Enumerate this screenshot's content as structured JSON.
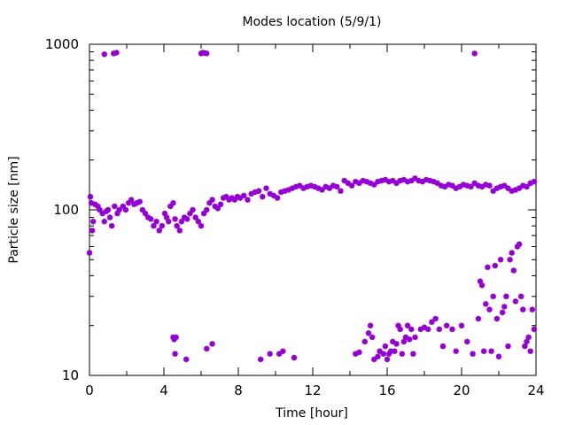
{
  "chart_data": {
    "type": "scatter",
    "title": "Modes location (5/9/1)",
    "xlabel": "Time [hour]",
    "ylabel": "Particle size [nm]",
    "xlim": [
      0,
      24
    ],
    "ylim": [
      10,
      1000
    ],
    "yscale": "log",
    "xticks": [
      "0",
      "4",
      "8",
      "12",
      "16",
      "20",
      "24"
    ],
    "yticks": [
      "10",
      "100",
      "1000"
    ],
    "grid": false,
    "marker_color": "#9400d3",
    "series": [
      {
        "x": [
          0.0,
          0.05,
          0.1,
          0.15,
          0.2,
          0.3,
          0.45,
          0.55,
          0.7,
          0.8,
          0.9,
          1.0,
          1.1,
          1.2,
          1.35,
          1.5,
          1.6,
          1.8,
          1.95,
          2.1,
          2.25,
          2.4,
          2.55,
          2.7,
          2.85,
          3.0,
          3.15,
          3.3,
          3.45,
          3.6,
          3.75,
          3.9,
          4.05,
          4.15,
          4.25,
          4.35,
          4.5,
          4.6,
          4.7,
          4.85,
          4.95,
          5.1,
          5.25,
          5.4,
          5.55,
          5.7,
          5.85,
          6.0,
          6.15,
          6.3,
          6.45,
          6.6,
          6.75,
          6.9,
          7.05,
          7.2,
          7.35,
          7.5,
          7.65,
          7.8,
          7.95,
          8.1,
          8.3,
          8.5,
          8.7,
          8.9,
          9.1,
          9.3,
          9.5,
          9.7,
          9.9,
          10.1,
          10.3,
          10.5,
          10.7,
          10.9,
          11.1,
          11.3,
          11.5,
          11.7,
          11.9,
          12.1,
          12.3,
          12.5,
          12.7,
          12.9,
          13.1,
          13.3,
          13.5,
          13.7,
          13.9,
          14.1,
          14.3,
          14.5,
          14.7,
          14.9,
          15.1,
          15.3,
          15.5,
          15.7,
          15.9,
          16.1,
          16.3,
          16.5,
          16.7,
          16.9,
          17.1,
          17.3,
          17.5,
          17.7,
          17.9,
          18.1,
          18.3,
          18.5,
          18.7,
          18.9,
          19.1,
          19.3,
          19.5,
          19.7,
          19.9,
          20.1,
          20.3,
          20.5,
          20.7,
          20.9,
          21.1,
          21.3,
          21.5,
          21.7,
          21.9,
          22.1,
          22.3,
          22.5,
          22.7,
          22.9,
          23.1,
          23.3,
          23.5,
          23.7,
          23.9
        ],
        "y": [
          55,
          120,
          110,
          75,
          85,
          108,
          105,
          100,
          95,
          85,
          98,
          100,
          90,
          80,
          105,
          95,
          100,
          105,
          100,
          110,
          115,
          108,
          110,
          112,
          100,
          95,
          90,
          88,
          80,
          85,
          75,
          80,
          95,
          90,
          85,
          105,
          110,
          88,
          80,
          75,
          85,
          90,
          88,
          95,
          100,
          90,
          85,
          80,
          95,
          100,
          110,
          115,
          105,
          102,
          108,
          118,
          120,
          115,
          118,
          115,
          120,
          118,
          122,
          115,
          125,
          128,
          130,
          120,
          135,
          125,
          122,
          118,
          128,
          130,
          132,
          135,
          138,
          140,
          135,
          138,
          140,
          138,
          135,
          132,
          138,
          135,
          140,
          138,
          130,
          150,
          145,
          140,
          148,
          145,
          150,
          148,
          145,
          142,
          148,
          150,
          152,
          148,
          150,
          145,
          150,
          152,
          148,
          150,
          155,
          150,
          148,
          152,
          150,
          148,
          145,
          140,
          138,
          142,
          140,
          135,
          138,
          142,
          140,
          138,
          145,
          140,
          138,
          142,
          140,
          130,
          135,
          138,
          140,
          135,
          130,
          132,
          135,
          140,
          138,
          145,
          148
        ]
      },
      {
        "x": [
          0.8,
          1.3,
          1.45,
          6.0,
          6.1,
          6.2,
          6.3,
          20.7
        ],
        "y": [
          870,
          880,
          890,
          880,
          890,
          885,
          880,
          880
        ]
      },
      {
        "x": [
          4.5,
          4.55,
          4.6,
          4.65,
          5.2,
          6.3,
          6.6,
          9.2,
          9.7,
          10.2,
          10.4,
          11.0,
          14.3,
          14.5,
          14.8,
          15.0,
          15.1,
          15.2,
          15.3,
          15.5,
          15.6,
          15.8,
          15.9,
          16.0,
          16.1,
          16.2,
          16.3,
          16.4,
          16.5,
          16.6,
          16.7,
          16.8,
          16.9,
          17.0,
          17.1,
          17.2,
          17.3,
          17.4,
          17.5,
          17.8,
          18.0,
          18.2,
          18.4,
          18.6,
          18.8,
          19.0,
          19.2,
          19.5,
          19.7,
          20.0
        ],
        "y": [
          17,
          16.5,
          13.5,
          17,
          12.5,
          14.5,
          15.5,
          12.5,
          13.5,
          13.5,
          14,
          12.8,
          13.5,
          13.8,
          16,
          18,
          20,
          17,
          12.5,
          13,
          14,
          13.5,
          15,
          12.5,
          13.5,
          14,
          16,
          14,
          15.5,
          20,
          19,
          13.5,
          16,
          17,
          20,
          16.5,
          19,
          13.5,
          17,
          19,
          19.5,
          19,
          21,
          22,
          19,
          15,
          20,
          19,
          14,
          20
        ]
      },
      {
        "x": [
          20.3,
          20.6,
          20.9,
          21.0,
          21.1,
          21.2,
          21.3,
          21.4,
          21.5,
          21.6,
          21.7,
          21.8,
          21.9,
          22.0,
          22.1,
          22.2,
          22.3,
          22.4,
          22.5,
          22.6,
          22.7,
          22.8,
          22.9,
          23.0,
          23.1,
          23.2,
          23.3,
          23.4,
          23.5,
          23.6,
          23.7,
          23.8,
          23.9
        ],
        "y": [
          16,
          13.5,
          22,
          37,
          35,
          14,
          27,
          45,
          25,
          14,
          30,
          46,
          22,
          13,
          50,
          24,
          26,
          30,
          15,
          50,
          55,
          43,
          28,
          60,
          62,
          30,
          25,
          15,
          16,
          17,
          14,
          25,
          19
        ]
      }
    ]
  }
}
